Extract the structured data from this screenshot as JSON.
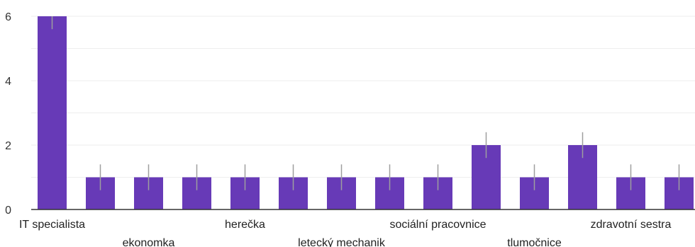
{
  "chart_data": {
    "type": "bar",
    "categories": [
      "IT specialista",
      "",
      "ekonomka",
      "",
      "herečka",
      "",
      "letecký mechanik",
      "",
      "sociální pracovnice",
      "",
      "tlumočnice",
      "",
      "zdravotní sestra",
      ""
    ],
    "values": [
      6,
      1,
      1,
      1,
      1,
      1,
      1,
      1,
      1,
      2,
      1,
      2,
      1,
      1
    ],
    "yticks": [
      0,
      2,
      4,
      6
    ],
    "ylim": [
      0,
      6
    ],
    "grid": true,
    "bar_color": "#673ab7",
    "error_bar_color": "#9e9e9e",
    "axis_color": "#333333",
    "grid_color": "#eeeeee"
  }
}
